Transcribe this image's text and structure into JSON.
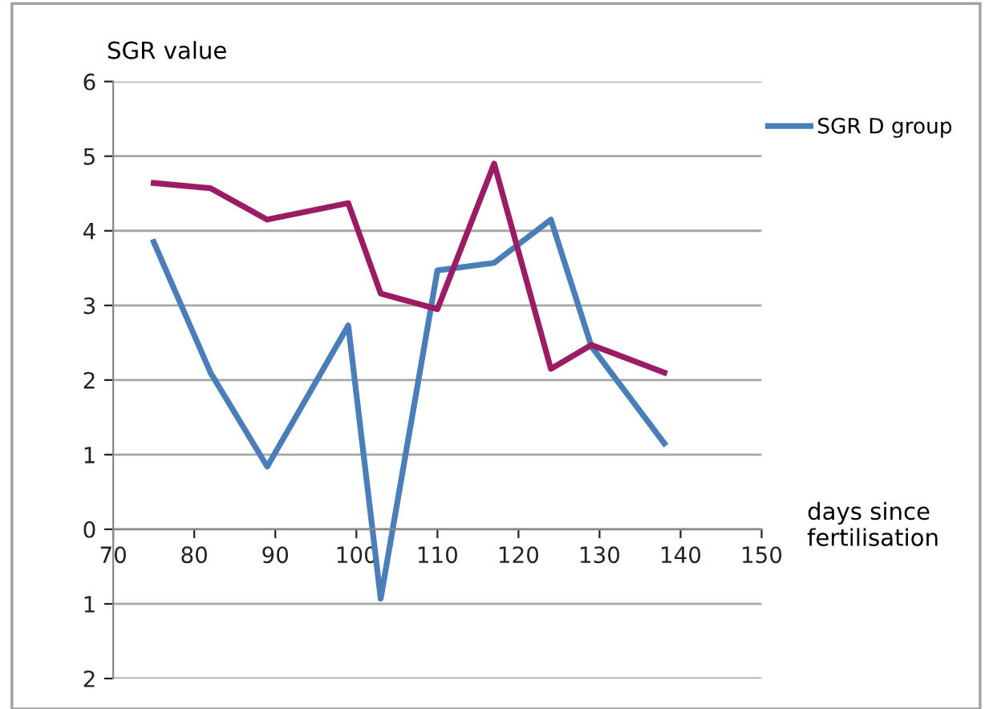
{
  "chart_data": {
    "type": "line",
    "ylabel": "SGR value",
    "xlabel": "days since fertilisation",
    "x": [
      75,
      82,
      89,
      99,
      103,
      110,
      117,
      124,
      129,
      138
    ],
    "series": [
      {
        "name": "SGR D group",
        "color": "#4a7ebb",
        "values": [
          3.85,
          2.1,
          0.84,
          2.73,
          -0.93,
          3.47,
          3.57,
          4.15,
          2.45,
          1.15
        ]
      },
      {
        "color": "#9b1b64",
        "values": [
          4.64,
          4.57,
          4.15,
          4.37,
          3.16,
          2.95,
          4.9,
          2.15,
          2.47,
          2.1
        ]
      }
    ],
    "xlim": [
      70,
      150
    ],
    "xticks": [
      70,
      80,
      90,
      100,
      110,
      120,
      130,
      140,
      150
    ],
    "ylim": [
      -2,
      6
    ],
    "yticks": [
      {
        "value": -2,
        "label": "2"
      },
      {
        "value": -1,
        "label": "1"
      },
      0,
      1,
      2,
      3,
      4,
      5,
      6
    ],
    "grid": "y",
    "legend": "top right",
    "marker": "none",
    "line_style": "solid"
  }
}
